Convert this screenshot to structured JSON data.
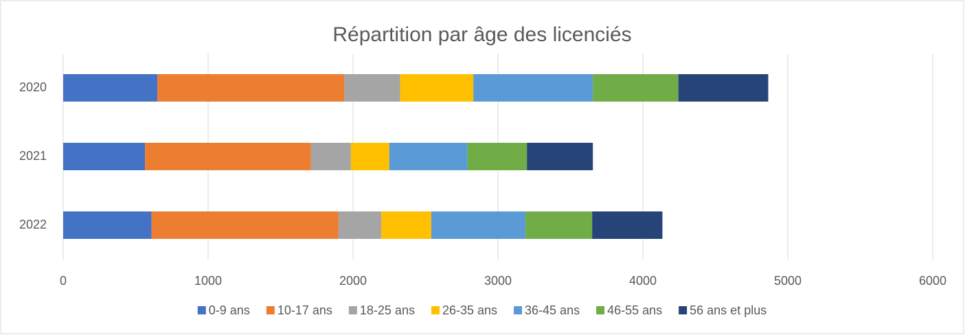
{
  "chart_data": {
    "type": "stacked-bar-horizontal",
    "title": "Répartition par âge des licenciés",
    "categories": [
      "2020",
      "2021",
      "2022"
    ],
    "series": [
      {
        "name": "0-9 ans",
        "color": "#4472c4",
        "values": [
          650,
          565,
          610
        ]
      },
      {
        "name": "10-17 ans",
        "color": "#ed7d31",
        "values": [
          1290,
          1145,
          1290
        ]
      },
      {
        "name": "18-25 ans",
        "color": "#a5a5a5",
        "values": [
          385,
          275,
          295
        ]
      },
      {
        "name": "26-35 ans",
        "color": "#ffc000",
        "values": [
          505,
          265,
          345
        ]
      },
      {
        "name": "36-45 ans",
        "color": "#5b9bd5",
        "values": [
          825,
          540,
          650
        ]
      },
      {
        "name": "46-55 ans",
        "color": "#70ad47",
        "values": [
          590,
          410,
          460
        ]
      },
      {
        "name": "56 ans et plus",
        "color": "#264478",
        "values": [
          620,
          455,
          485
        ]
      }
    ],
    "xlim": [
      0,
      6000
    ],
    "xticks": [
      0,
      1000,
      2000,
      3000,
      4000,
      5000,
      6000
    ],
    "grid": true,
    "legend": "bottom"
  }
}
